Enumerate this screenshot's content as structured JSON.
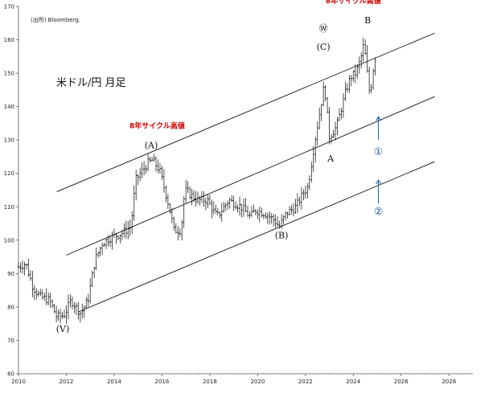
{
  "chart_data": {
    "type": "ohlc",
    "title": "米ドル/円 月足",
    "source": "(出所) Bloomberg.",
    "x_ticks": [
      "2010",
      "2012",
      "2014",
      "2016",
      "2018",
      "2020",
      "2022",
      "2024",
      "2026",
      "2028"
    ],
    "xlim": [
      2010,
      2029
    ],
    "y_ticks": [
      "60",
      "70",
      "80",
      "90",
      "100",
      "110",
      "120",
      "130",
      "140",
      "150",
      "160",
      "170"
    ],
    "ylim": [
      60,
      170
    ],
    "grid": false,
    "anchors": [
      [
        2010.0,
        92
      ],
      [
        2010.3,
        93
      ],
      [
        2010.6,
        86
      ],
      [
        2010.9,
        83
      ],
      [
        2011.3,
        82
      ],
      [
        2011.6,
        77
      ],
      [
        2011.9,
        77.5
      ],
      [
        2012.2,
        82
      ],
      [
        2012.6,
        78
      ],
      [
        2012.9,
        82
      ],
      [
        2013.2,
        94
      ],
      [
        2013.5,
        99
      ],
      [
        2013.9,
        101
      ],
      [
        2014.3,
        102
      ],
      [
        2014.7,
        104
      ],
      [
        2014.9,
        118
      ],
      [
        2015.4,
        123
      ],
      [
        2015.6,
        124
      ],
      [
        2015.9,
        121
      ],
      [
        2016.3,
        110
      ],
      [
        2016.5,
        103
      ],
      [
        2016.8,
        103
      ],
      [
        2016.95,
        115
      ],
      [
        2017.5,
        112
      ],
      [
        2017.9,
        112
      ],
      [
        2018.3,
        107
      ],
      [
        2018.8,
        112
      ],
      [
        2019.3,
        110
      ],
      [
        2019.7,
        107
      ],
      [
        2019.9,
        109
      ],
      [
        2020.3,
        108
      ],
      [
        2020.7,
        106
      ],
      [
        2020.9,
        104
      ],
      [
        2021.2,
        108
      ],
      [
        2021.6,
        110
      ],
      [
        2021.9,
        114
      ],
      [
        2022.1,
        116
      ],
      [
        2022.4,
        130
      ],
      [
        2022.8,
        147
      ],
      [
        2022.85,
        142
      ],
      [
        2023.0,
        131
      ],
      [
        2023.3,
        134
      ],
      [
        2023.7,
        145
      ],
      [
        2023.9,
        149
      ],
      [
        2024.1,
        150
      ],
      [
        2024.3,
        154
      ],
      [
        2024.45,
        159
      ],
      [
        2024.55,
        152
      ],
      [
        2024.7,
        143
      ],
      [
        2024.8,
        150
      ],
      [
        2024.95,
        156
      ]
    ],
    "channel_lines": [
      {
        "x1": 2011.6,
        "y1": 114.5,
        "x2": 2027.4,
        "y2": 162
      },
      {
        "x1": 2012.0,
        "y1": 95.5,
        "x2": 2027.4,
        "y2": 143
      },
      {
        "x1": 2012.5,
        "y1": 78.5,
        "x2": 2027.4,
        "y2": 123.5
      }
    ],
    "annotations": [
      {
        "text": "(V)",
        "x": 2011.85,
        "y": 72.5,
        "style": "serif"
      },
      {
        "text": "(A)",
        "x": 2015.55,
        "y": 127.5,
        "style": "serif"
      },
      {
        "text": "(B)",
        "x": 2021.0,
        "y": 100.5,
        "style": "serif"
      },
      {
        "text": "(C)",
        "x": 2022.75,
        "y": 157,
        "style": "serif"
      },
      {
        "text": "Ⓦ",
        "x": 2022.75,
        "y": 162.5,
        "style": "serif"
      },
      {
        "text": "A",
        "x": 2023.05,
        "y": 123.5,
        "style": "serif"
      },
      {
        "text": "B",
        "x": 2024.6,
        "y": 165,
        "style": "serif"
      },
      {
        "text": "8年サイクル高値",
        "x": 2015.8,
        "y": 133.5,
        "style": "red"
      },
      {
        "text": "8年サイクル高値",
        "x": 2024.0,
        "y": 171,
        "style": "red"
      },
      {
        "text": "①",
        "x": 2025.05,
        "y": 125.5,
        "style": "blue"
      },
      {
        "text": "②",
        "x": 2025.05,
        "y": 107.5,
        "style": "blue"
      }
    ],
    "arrows": [
      {
        "x": 2025.05,
        "y_from": 130,
        "y_to": 137
      },
      {
        "x": 2025.05,
        "y_from": 111,
        "y_to": 118
      }
    ]
  }
}
